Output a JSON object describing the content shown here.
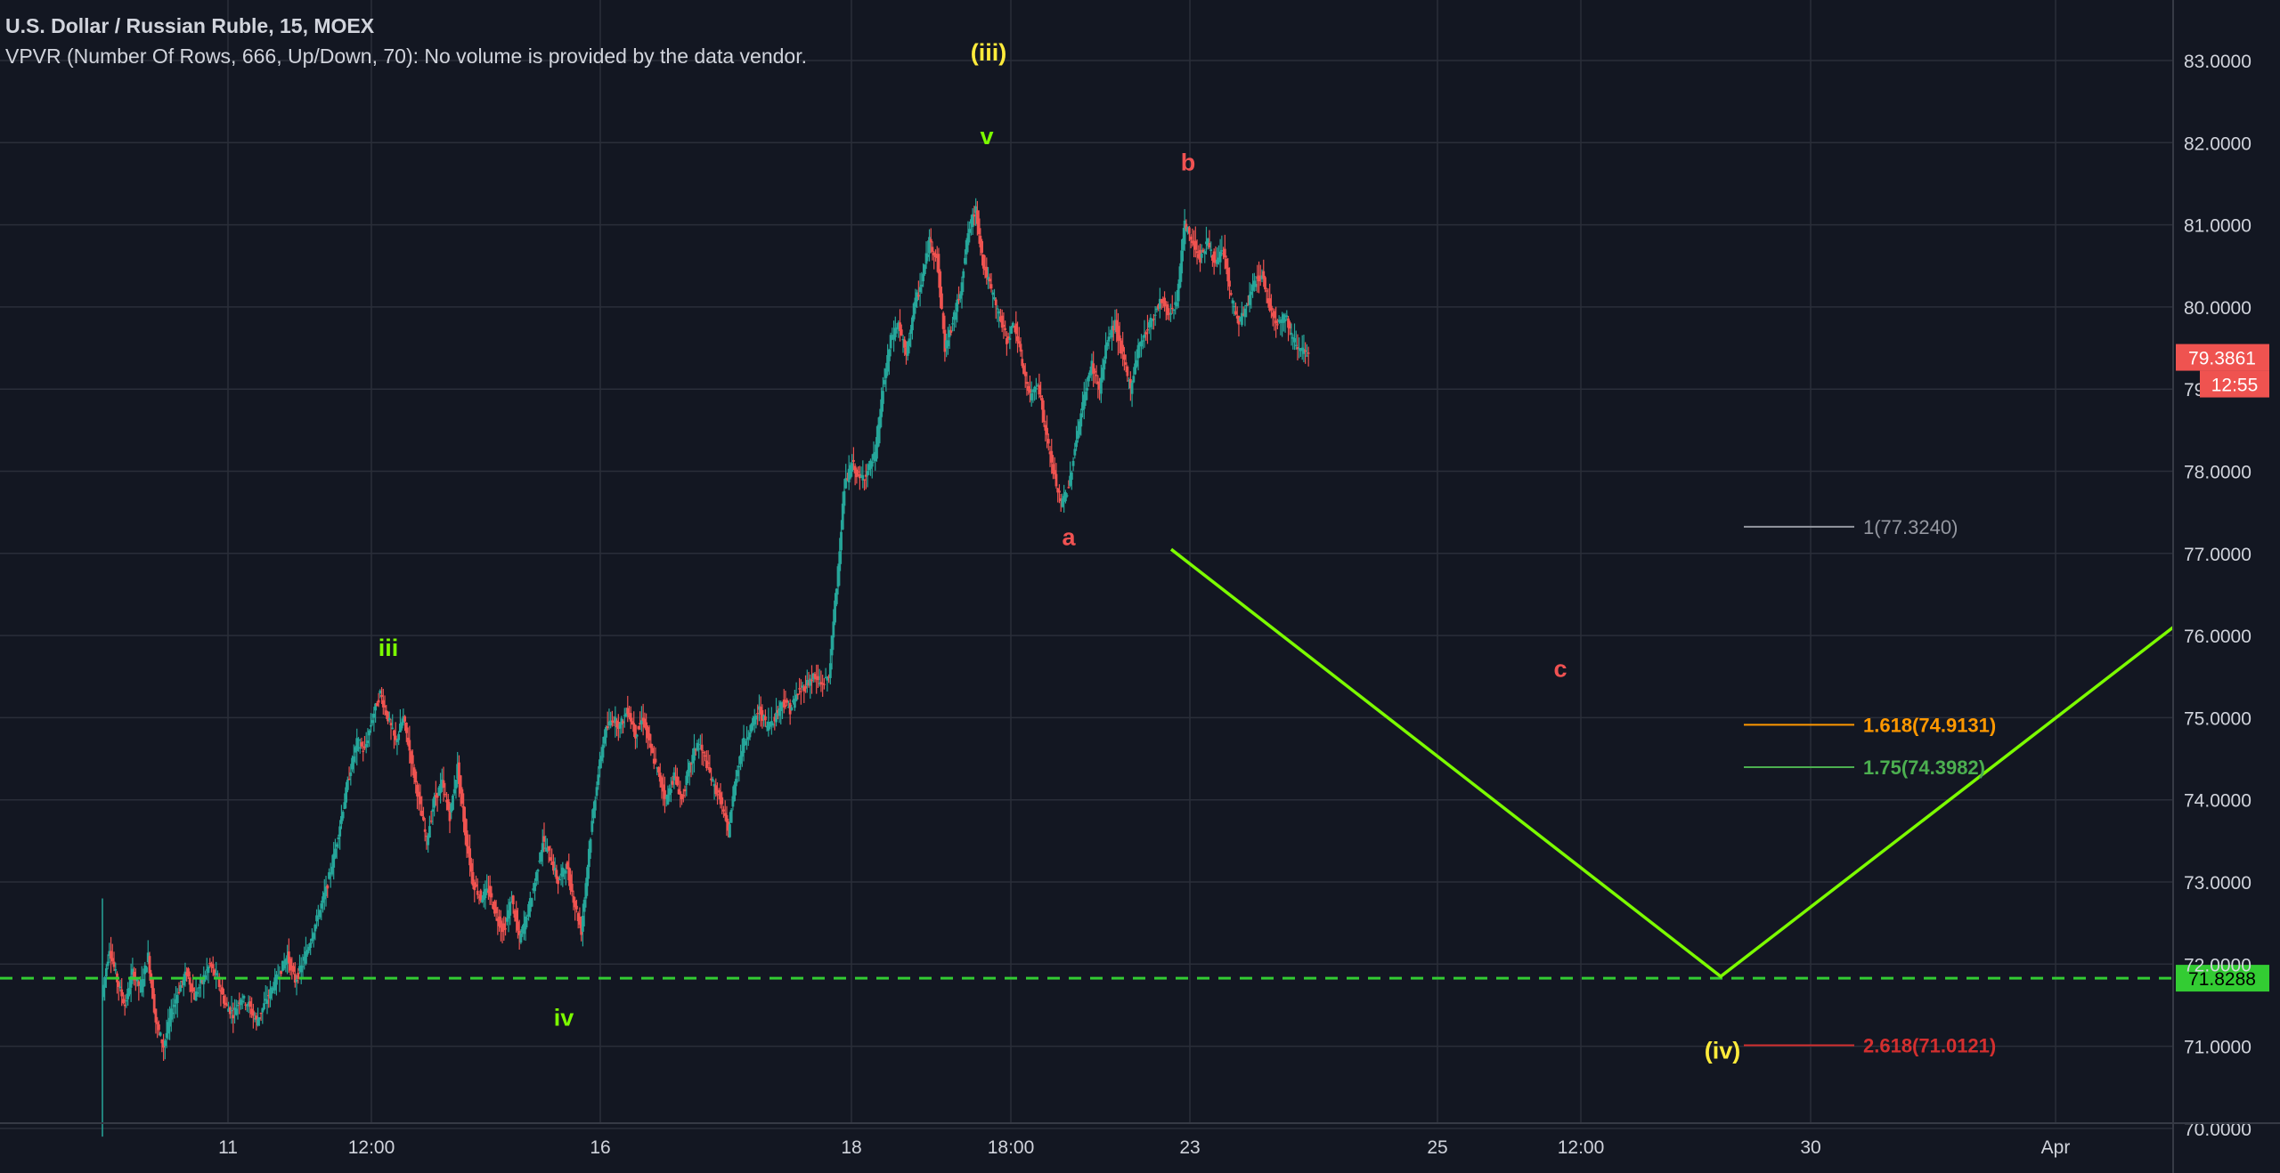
{
  "header": {
    "title": "U.S. Dollar / Russian Ruble, 15, MOEX",
    "study": "VPVR (Number Of Rows, 666, Up/Down, 70): No volume is provided by the data vendor."
  },
  "colors": {
    "background": "#131722",
    "grid": "#2a2e39",
    "axis_text": "#d1d4dc",
    "up_candle": "#26a69a",
    "down_candle": "#ef5350",
    "elliott_green": "#7cfc00",
    "elliott_yellow": "#ffeb3b",
    "elliott_red": "#f05252",
    "fib_1": "#9598a1",
    "fib_1618": "#ff9800",
    "fib_175": "#4caf50",
    "fib_2618": "#d32f2f",
    "price_badge": "#ef5350",
    "support_badge": "#33cc33"
  },
  "chart_data": {
    "type": "candlestick",
    "symbol": "U.S. Dollar / Russian Ruble",
    "interval": "15",
    "exchange": "MOEX",
    "y_axis": {
      "ylim": [
        69.9,
        83.4
      ],
      "ticks": [
        "70.0000",
        "71.0000",
        "72.0000",
        "73.0000",
        "74.0000",
        "75.0000",
        "76.0000",
        "77.0000",
        "78.0000",
        "79.0000",
        "80.0000",
        "81.0000",
        "82.0000",
        "83.0000"
      ]
    },
    "x_axis": {
      "ticks": [
        {
          "label": "11"
        },
        {
          "label": "12:00"
        },
        {
          "label": "16"
        },
        {
          "label": "18"
        },
        {
          "label": "18:00"
        },
        {
          "label": "23"
        },
        {
          "label": "25"
        },
        {
          "label": "12:00"
        },
        {
          "label": "30"
        },
        {
          "label": "Apr"
        }
      ]
    },
    "last_price": {
      "value": "79.3861",
      "countdown": "12:55"
    },
    "support_line": {
      "value": "71.8288",
      "price": 71.8288
    },
    "price_path": [
      [
        0,
        71.6
      ],
      [
        1,
        72.2
      ],
      [
        2,
        71.8
      ],
      [
        3,
        71.5
      ],
      [
        4,
        71.9
      ],
      [
        5,
        71.7
      ],
      [
        6,
        72.1
      ],
      [
        7,
        71.3
      ],
      [
        8,
        71.0
      ],
      [
        9,
        71.4
      ],
      [
        10,
        71.7
      ],
      [
        11,
        71.9
      ],
      [
        12,
        71.6
      ],
      [
        13,
        71.8
      ],
      [
        14,
        72.0
      ],
      [
        15,
        71.8
      ],
      [
        16,
        71.5
      ],
      [
        17,
        71.4
      ],
      [
        18,
        71.6
      ],
      [
        19,
        71.5
      ],
      [
        20,
        71.3
      ],
      [
        21,
        71.5
      ],
      [
        22,
        71.7
      ],
      [
        23,
        71.9
      ],
      [
        24,
        72.1
      ],
      [
        25,
        71.8
      ],
      [
        26,
        72.0
      ],
      [
        27,
        72.3
      ],
      [
        28,
        72.6
      ],
      [
        29,
        72.9
      ],
      [
        30,
        73.3
      ],
      [
        31,
        73.8
      ],
      [
        32,
        74.3
      ],
      [
        33,
        74.7
      ],
      [
        34,
        74.6
      ],
      [
        35,
        75.0
      ],
      [
        36,
        75.3
      ],
      [
        37,
        75.0
      ],
      [
        38,
        74.7
      ],
      [
        39,
        75.0
      ],
      [
        40,
        74.5
      ],
      [
        41,
        74.0
      ],
      [
        42,
        73.5
      ],
      [
        43,
        74.0
      ],
      [
        44,
        74.2
      ],
      [
        45,
        73.8
      ],
      [
        46,
        74.4
      ],
      [
        47,
        73.6
      ],
      [
        48,
        73.0
      ],
      [
        49,
        72.8
      ],
      [
        50,
        72.9
      ],
      [
        51,
        72.6
      ],
      [
        52,
        72.4
      ],
      [
        53,
        72.8
      ],
      [
        54,
        72.3
      ],
      [
        55,
        72.6
      ],
      [
        56,
        73.0
      ],
      [
        57,
        73.5
      ],
      [
        58,
        73.3
      ],
      [
        59,
        73.0
      ],
      [
        60,
        73.2
      ],
      [
        61,
        72.8
      ],
      [
        62,
        72.4
      ],
      [
        63,
        73.4
      ],
      [
        64,
        74.2
      ],
      [
        65,
        74.8
      ],
      [
        66,
        75.0
      ],
      [
        67,
        74.9
      ],
      [
        68,
        75.1
      ],
      [
        69,
        74.8
      ],
      [
        70,
        75.0
      ],
      [
        71,
        74.6
      ],
      [
        72,
        74.3
      ],
      [
        73,
        74.0
      ],
      [
        74,
        74.3
      ],
      [
        75,
        74.0
      ],
      [
        76,
        74.4
      ],
      [
        77,
        74.7
      ],
      [
        78,
        74.5
      ],
      [
        79,
        74.2
      ],
      [
        80,
        74.0
      ],
      [
        81,
        73.6
      ],
      [
        82,
        74.3
      ],
      [
        83,
        74.7
      ],
      [
        84,
        74.9
      ],
      [
        85,
        75.1
      ],
      [
        86,
        74.9
      ],
      [
        87,
        75.0
      ],
      [
        88,
        75.2
      ],
      [
        89,
        75.1
      ],
      [
        90,
        75.3
      ],
      [
        91,
        75.4
      ],
      [
        92,
        75.5
      ],
      [
        93,
        75.4
      ],
      [
        94,
        75.5
      ],
      [
        95,
        76.6
      ],
      [
        96,
        77.8
      ],
      [
        97,
        78.1
      ],
      [
        98,
        77.9
      ],
      [
        99,
        78.0
      ],
      [
        100,
        78.2
      ],
      [
        101,
        79.0
      ],
      [
        102,
        79.6
      ],
      [
        103,
        79.8
      ],
      [
        104,
        79.4
      ],
      [
        105,
        80.0
      ],
      [
        106,
        80.3
      ],
      [
        107,
        80.8
      ],
      [
        108,
        80.6
      ],
      [
        109,
        79.5
      ],
      [
        110,
        79.8
      ],
      [
        111,
        80.2
      ],
      [
        112,
        80.9
      ],
      [
        113,
        81.2
      ],
      [
        114,
        80.5
      ],
      [
        115,
        80.2
      ],
      [
        116,
        79.9
      ],
      [
        117,
        79.6
      ],
      [
        118,
        79.8
      ],
      [
        119,
        79.3
      ],
      [
        120,
        78.9
      ],
      [
        121,
        79.1
      ],
      [
        122,
        78.5
      ],
      [
        123,
        78.0
      ],
      [
        124,
        77.6
      ],
      [
        125,
        77.8
      ],
      [
        126,
        78.4
      ],
      [
        127,
        78.9
      ],
      [
        128,
        79.3
      ],
      [
        129,
        79.0
      ],
      [
        130,
        79.6
      ],
      [
        131,
        79.8
      ],
      [
        132,
        79.4
      ],
      [
        133,
        79.0
      ],
      [
        134,
        79.5
      ],
      [
        135,
        79.7
      ],
      [
        136,
        79.9
      ],
      [
        137,
        80.1
      ],
      [
        138,
        79.9
      ],
      [
        139,
        80.1
      ],
      [
        140,
        81.0
      ],
      [
        141,
        80.8
      ],
      [
        142,
        80.6
      ],
      [
        143,
        80.8
      ],
      [
        144,
        80.5
      ],
      [
        145,
        80.7
      ],
      [
        146,
        80.1
      ],
      [
        147,
        79.8
      ],
      [
        148,
        80.0
      ],
      [
        149,
        80.3
      ],
      [
        150,
        80.4
      ],
      [
        151,
        80.0
      ],
      [
        152,
        79.8
      ],
      [
        153,
        79.9
      ],
      [
        154,
        79.6
      ],
      [
        155,
        79.5
      ],
      [
        156,
        79.3861
      ]
    ],
    "elliott_labels": [
      {
        "text": "iii",
        "price": 75.75,
        "color": "green"
      },
      {
        "text": "iv",
        "price": 71.25,
        "color": "green"
      },
      {
        "text": "(iii)",
        "price": 83.0,
        "color": "yellow"
      },
      {
        "text": "v",
        "price": 81.98,
        "color": "green"
      },
      {
        "text": "a",
        "price": 77.1,
        "color": "red"
      },
      {
        "text": "b",
        "price": 81.66,
        "color": "red"
      },
      {
        "text": "c",
        "price": 75.5,
        "color": "red"
      },
      {
        "text": "(iv)",
        "price": 70.85,
        "color": "yellow"
      }
    ],
    "projection": [
      {
        "price": 77.05
      },
      {
        "price": 71.85
      },
      {
        "price": 76.1
      }
    ],
    "fib_levels": [
      {
        "label": "1(77.3240)",
        "price": 77.324,
        "color": "fib_1"
      },
      {
        "label": "1.618(74.9131)",
        "price": 74.9131,
        "color": "fib_1618"
      },
      {
        "label": "1.75(74.3982)",
        "price": 74.3982,
        "color": "fib_175"
      },
      {
        "label": "2.618(71.0121)",
        "price": 71.0121,
        "color": "fib_2618"
      }
    ]
  }
}
